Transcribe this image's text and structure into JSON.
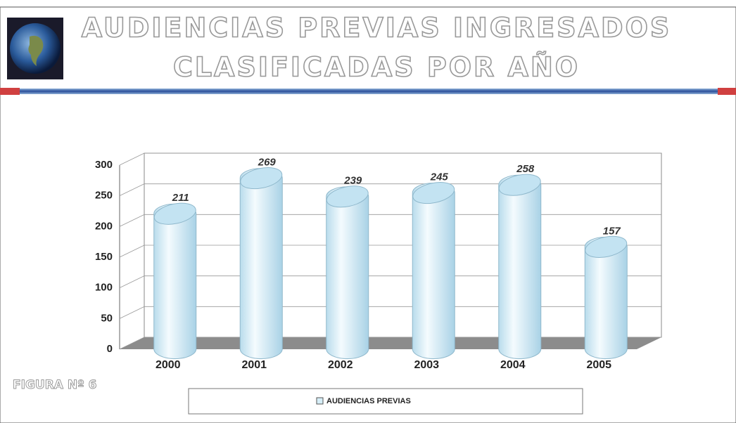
{
  "chart_data": {
    "type": "bar",
    "title": "AUDIENCIAS PREVIAS INGRESADOS",
    "subtitle": "CLASIFICADAS POR AÑO",
    "figure_label": "FIGURA Nº 6",
    "categories": [
      "2000",
      "2001",
      "2002",
      "2003",
      "2004",
      "2005"
    ],
    "series": [
      {
        "name": "AUDIENCIAS PREVIAS",
        "color": "#d6eef8",
        "values": [
          211,
          269,
          239,
          245,
          258,
          157
        ]
      }
    ],
    "ylim": [
      0,
      300
    ],
    "yticks": [
      0,
      50,
      100,
      150,
      200,
      250,
      300
    ],
    "grid": true,
    "legend": "bottom"
  }
}
